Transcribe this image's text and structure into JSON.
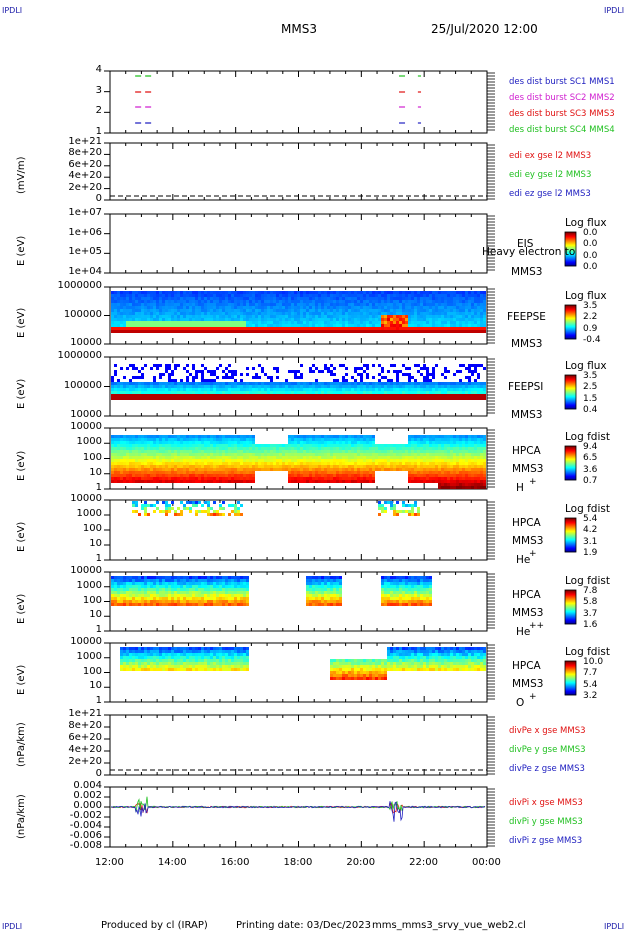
{
  "corners": {
    "tl": "IPDLI",
    "tr": "IPDLI",
    "bl": "IPDLI",
    "br": "IPDLI"
  },
  "header": {
    "spacecraft": "MMS3",
    "date": "25/Jul/2020 12:00"
  },
  "footer": {
    "produced": "Produced by cl (IRAP)",
    "printed": "Printing date: 03/Dec/2023",
    "file": "mms_mms3_srvy_vue_web2.cl"
  },
  "xaxis": {
    "ticks": [
      "12:00",
      "14:00",
      "16:00",
      "18:00",
      "20:00",
      "22:00",
      "00:00"
    ]
  },
  "colors": {
    "mms1": "#2020c0",
    "mms2": "#d020d0",
    "mms3": "#e01010",
    "mms4": "#20c020"
  },
  "chart_data": [
    {
      "type": "line",
      "name": "burst-intervals",
      "yticks": [
        "4",
        "3",
        "2",
        "1"
      ],
      "legend": [
        "des dist burst SC1 MMS1",
        "des dist burst SC2 MMS2",
        "des dist burst SC3 MMS3",
        "des dist burst SC4 MMS4"
      ],
      "intervals_hours": [
        [
          12.8,
          13.4
        ],
        [
          21.2,
          21.5
        ],
        [
          21.8,
          21.9
        ]
      ]
    },
    {
      "type": "line",
      "name": "edi-efield",
      "ylabel": "(mV/m)",
      "yticks": [
        "1e+21",
        "8e+20",
        "6e+20",
        "4e+20",
        "2e+20",
        "0"
      ],
      "legend": [
        "edi ex gse l2 MMS3",
        "edi ey gse l2 MMS3",
        "edi ez gse l2 MMS3"
      ]
    },
    {
      "type": "heatmap",
      "name": "eis",
      "ylabel": "E (eV)",
      "yticks": [
        "1e+07",
        "1e+06",
        "1e+05",
        "1e+04"
      ],
      "instrument": "EIS",
      "subtitle": "Heavy electron to",
      "sc": "MMS3",
      "cbar_title": "Log flux",
      "cbar_ticks": [
        "0.0",
        "0.0",
        "0.0",
        "0.0"
      ]
    },
    {
      "type": "heatmap",
      "name": "feepse",
      "ylabel": "E (eV)",
      "yticks": [
        "1000000",
        "100000",
        "10000"
      ],
      "instrument": "FEEPSE",
      "sc": "MMS3",
      "cbar_title": "Log flux",
      "cbar_ticks": [
        "3.5",
        "2.2",
        "0.9",
        "-0.4"
      ]
    },
    {
      "type": "heatmap",
      "name": "feepsi",
      "ylabel": "E (eV)",
      "yticks": [
        "1000000",
        "100000",
        "10000"
      ],
      "instrument": "FEEPSI",
      "sc": "MMS3",
      "cbar_title": "Log flux",
      "cbar_ticks": [
        "3.5",
        "2.5",
        "1.5",
        "0.4"
      ]
    },
    {
      "type": "heatmap",
      "name": "hpca-h",
      "ylabel": "E (eV)",
      "yticks": [
        "10000",
        "1000",
        "100",
        "10",
        "1"
      ],
      "instrument": "HPCA",
      "sc": "MMS3",
      "species": "H",
      "species_sup": "+",
      "cbar_title": "Log fdist",
      "cbar_ticks": [
        "9.4",
        "6.5",
        "3.6",
        "0.7"
      ]
    },
    {
      "type": "heatmap",
      "name": "hpca-he",
      "ylabel": "E (eV)",
      "yticks": [
        "10000",
        "1000",
        "100",
        "10",
        "1"
      ],
      "instrument": "HPCA",
      "sc": "MMS3",
      "species": "He",
      "species_sup": "+",
      "cbar_title": "Log fdist",
      "cbar_ticks": [
        "5.4",
        "4.2",
        "3.1",
        "1.9"
      ]
    },
    {
      "type": "heatmap",
      "name": "hpca-he2",
      "ylabel": "E (eV)",
      "yticks": [
        "10000",
        "1000",
        "100",
        "10",
        "1"
      ],
      "instrument": "HPCA",
      "sc": "MMS3",
      "species": "He",
      "species_sup": "++",
      "cbar_title": "Log fdist",
      "cbar_ticks": [
        "7.8",
        "5.8",
        "3.7",
        "1.6"
      ]
    },
    {
      "type": "heatmap",
      "name": "hpca-o",
      "ylabel": "E (eV)",
      "yticks": [
        "10000",
        "1000",
        "100",
        "10",
        "1"
      ],
      "instrument": "HPCA",
      "sc": "MMS3",
      "species": "O",
      "species_sup": "+",
      "cbar_title": "Log fdist",
      "cbar_ticks": [
        "10.0",
        "7.7",
        "5.4",
        "3.2"
      ]
    },
    {
      "type": "line",
      "name": "divpe",
      "ylabel": "(nPa/km)",
      "yticks": [
        "1e+21",
        "8e+20",
        "6e+20",
        "4e+20",
        "2e+20",
        "0"
      ],
      "legend": [
        "divPe x gse MMS3",
        "divPe y gse MMS3",
        "divPe z gse MMS3"
      ]
    },
    {
      "type": "line",
      "name": "divpi",
      "ylabel": "(nPa/km)",
      "yticks": [
        "0.004",
        "0.002",
        "0.000",
        "-0.002",
        "-0.004",
        "-0.006",
        "-0.008"
      ],
      "ylim": [
        -0.008,
        0.004
      ],
      "legend": [
        "divPi x gse MMS3",
        "divPi y gse MMS3",
        "divPi z gse MMS3"
      ]
    }
  ]
}
